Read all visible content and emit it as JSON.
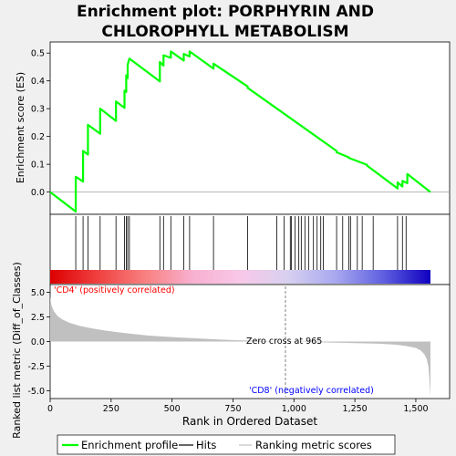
{
  "title_line1": "Enrichment plot: PORPHYRIN AND",
  "title_line2": "CHLOROPHYLL METABOLISM",
  "colors": {
    "background": "#f0f0f0",
    "panel": "#ffffff",
    "es_line": "#00ff00",
    "hits": "#000000",
    "metric_fill": "#c0c0c0",
    "positive_label": "#ff0000",
    "negative_label": "#0000ff",
    "zero_cross_line": "#808080"
  },
  "chart_data": {
    "type": "line",
    "x_max": 1560,
    "es_panel": {
      "ylabel": "Enrichment score (ES)",
      "ylim": [
        -0.08,
        0.54
      ],
      "yticks": [
        0.0,
        0.1,
        0.2,
        0.3,
        0.4,
        0.5
      ],
      "ytick_labels": [
        "0.0",
        "0.1",
        "0.2",
        "0.3",
        "0.4",
        "0.5"
      ],
      "series": [
        {
          "x": [
            0,
            105,
            105,
            135,
            135,
            155,
            155,
            205,
            205,
            270,
            270,
            305,
            305,
            312,
            312,
            318,
            318,
            325,
            325,
            450,
            450,
            465,
            465,
            495,
            495,
            548,
            548,
            572,
            572,
            670,
            670,
            810,
            810,
            1175,
            1175,
            1225,
            1225,
            1300,
            1300,
            1425,
            1425,
            1445,
            1445,
            1465,
            1465,
            1560
          ],
          "y": [
            0.0,
            -0.07,
            0.055,
            0.038,
            0.148,
            0.135,
            0.242,
            0.21,
            0.3,
            0.256,
            0.326,
            0.303,
            0.365,
            0.36,
            0.42,
            0.41,
            0.458,
            0.48,
            0.48,
            0.398,
            0.468,
            0.455,
            0.492,
            0.483,
            0.506,
            0.473,
            0.497,
            0.488,
            0.506,
            0.444,
            0.462,
            0.38,
            0.375,
            0.148,
            0.143,
            0.125,
            0.123,
            0.098,
            0.095,
            0.013,
            0.035,
            0.02,
            0.04,
            0.032,
            0.065,
            0.0
          ]
        }
      ]
    },
    "hits_panel": {
      "hits": [
        105,
        135,
        155,
        205,
        270,
        305,
        312,
        318,
        325,
        450,
        465,
        495,
        548,
        572,
        670,
        810,
        930,
        960,
        985,
        990,
        1005,
        1020,
        1030,
        1045,
        1060,
        1080,
        1095,
        1110,
        1120,
        1175,
        1200,
        1225,
        1232,
        1260,
        1280,
        1325,
        1425,
        1445,
        1460
      ]
    },
    "gradient_bar": {
      "stops": [
        "#dd0000",
        "#f04040",
        "#f88080",
        "#f8b0d0",
        "#f8c8e8",
        "#d8d0f0",
        "#a8a8f0",
        "#6060e0",
        "#1000c0"
      ]
    },
    "metric_panel": {
      "ylabel": "Ranked list metric (Diff_of_Classes)",
      "ylim": [
        -5.8,
        5.8
      ],
      "yticks": [
        -5.0,
        -2.5,
        0.0,
        2.5,
        5.0
      ],
      "ytick_labels": [
        "-5.0",
        "-2.5",
        "0.0",
        "2.5",
        "5.0"
      ],
      "x": [
        0,
        5,
        15,
        30,
        50,
        80,
        120,
        170,
        230,
        300,
        400,
        500,
        600,
        700,
        800,
        900,
        965,
        1050,
        1150,
        1250,
        1350,
        1420,
        1460,
        1500,
        1520,
        1535,
        1545,
        1552,
        1556,
        1560
      ],
      "values": [
        4.6,
        3.7,
        3.1,
        2.6,
        2.25,
        1.9,
        1.6,
        1.35,
        1.1,
        0.88,
        0.62,
        0.45,
        0.32,
        0.2,
        0.1,
        0.04,
        0.0,
        -0.05,
        -0.1,
        -0.16,
        -0.22,
        -0.33,
        -0.45,
        -0.65,
        -0.9,
        -1.3,
        -1.8,
        -2.6,
        -4.0,
        -5.6
      ],
      "positive_label": "'CD4' (positively correlated)",
      "negative_label": "'CD8' (negatively correlated)",
      "zero_cross_label": "Zero cross at 965",
      "zero_cross": 965
    },
    "x_axis": {
      "label": "Rank in Ordered Dataset",
      "ticks": [
        0,
        250,
        500,
        750,
        1000,
        1250,
        1500
      ],
      "tick_labels": [
        "0",
        "250",
        "500",
        "750",
        "1,000",
        "1,250",
        "1,500"
      ]
    },
    "legend": {
      "placement": "bottom",
      "items": [
        "Enrichment profile",
        "Hits",
        "Ranking metric scores"
      ]
    }
  }
}
